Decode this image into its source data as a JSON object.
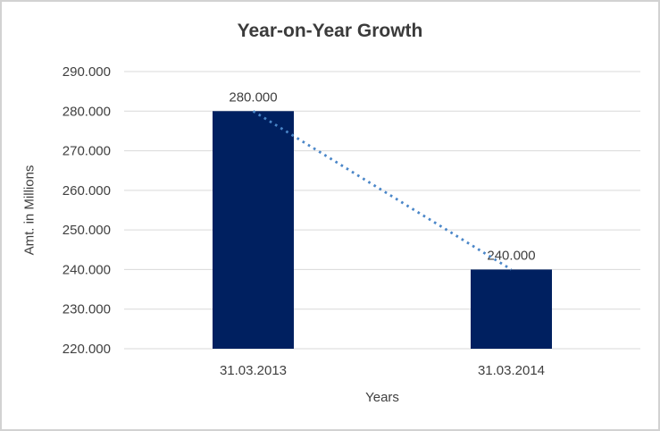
{
  "chart": {
    "background": "#ffffff",
    "border_color": "#d2d2d2"
  },
  "chart_data": {
    "type": "bar",
    "title": "Year-on-Year Growth",
    "xlabel": "Years",
    "ylabel": "Amt. in Millions",
    "categories": [
      "31.03.2013",
      "31.03.2014"
    ],
    "values": [
      280000,
      240000
    ],
    "data_labels": [
      "280.000",
      "240.000"
    ],
    "ylim": [
      220000,
      290000
    ],
    "ytick_step": 10000,
    "ytick_labels": [
      "290.000",
      "280.000",
      "270.000",
      "260.000",
      "250.000",
      "240.000",
      "230.000",
      "220.000"
    ],
    "grid": true,
    "legend": false,
    "bar_color": "#002060",
    "gridline_color": "#d9d9d9",
    "axis_text_color": "#404040",
    "data_label_color": "#3f3f3f",
    "title_color": "#3b3b3b",
    "trendline": {
      "type": "linear",
      "style": "dotted",
      "color": "#4a86c8",
      "from_value": 280000,
      "to_value": 240000
    }
  }
}
